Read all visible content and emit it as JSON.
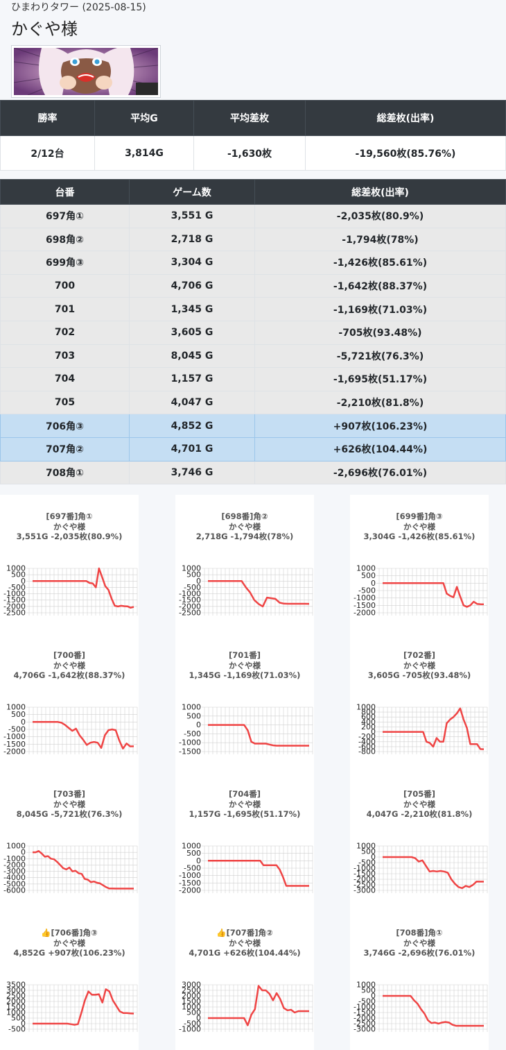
{
  "header": {
    "store": "ひまわりタワー (2025-08-15)",
    "title": "かぐや様"
  },
  "summary": {
    "headers": [
      "勝率",
      "平均G",
      "平均差枚",
      "総差枚(出率)"
    ],
    "values": [
      "2/12台",
      "3,814G",
      "-1,630枚",
      "-19,560枚(85.76%)"
    ]
  },
  "machines": {
    "headers": [
      "台番",
      "ゲーム数",
      "総差枚(出率)"
    ],
    "rows": [
      {
        "no": "697角①",
        "games": "3,551 G",
        "diff": "-2,035枚(80.9%)",
        "highlight": false
      },
      {
        "no": "698角②",
        "games": "2,718 G",
        "diff": "-1,794枚(78%)",
        "highlight": false
      },
      {
        "no": "699角③",
        "games": "3,304 G",
        "diff": "-1,426枚(85.61%)",
        "highlight": false
      },
      {
        "no": "700",
        "games": "4,706 G",
        "diff": "-1,642枚(88.37%)",
        "highlight": false
      },
      {
        "no": "701",
        "games": "1,345 G",
        "diff": "-1,169枚(71.03%)",
        "highlight": false
      },
      {
        "no": "702",
        "games": "3,605 G",
        "diff": "-705枚(93.48%)",
        "highlight": false
      },
      {
        "no": "703",
        "games": "8,045 G",
        "diff": "-5,721枚(76.3%)",
        "highlight": false
      },
      {
        "no": "704",
        "games": "1,157 G",
        "diff": "-1,695枚(51.17%)",
        "highlight": false
      },
      {
        "no": "705",
        "games": "4,047 G",
        "diff": "-2,210枚(81.8%)",
        "highlight": false
      },
      {
        "no": "706角③",
        "games": "4,852 G",
        "diff": "+907枚(106.23%)",
        "highlight": true
      },
      {
        "no": "707角②",
        "games": "4,701 G",
        "diff": "+626枚(104.44%)",
        "highlight": true
      },
      {
        "no": "708角①",
        "games": "3,746 G",
        "diff": "-2,696枚(76.01%)",
        "highlight": false
      }
    ]
  },
  "colors": {
    "line": "#ef4444",
    "grid": "#d0d0d0",
    "header": "#343a40",
    "highlight": "#c5def3"
  },
  "chart_data": [
    {
      "type": "line",
      "title_lines": [
        "[697番]角①",
        "かぐや様",
        "3,551G -2,035枚(80.9%)"
      ],
      "yticks": [
        1000,
        500,
        0,
        -500,
        -1000,
        -1500,
        -2000,
        -2500
      ],
      "ylim": [
        -2500,
        1000
      ],
      "values": [
        0,
        0,
        0,
        0,
        0,
        0,
        0,
        0,
        0,
        0,
        0,
        0,
        0,
        0,
        0,
        0,
        0,
        0,
        -150,
        -180,
        -500,
        1000,
        300,
        -400,
        -700,
        -1400,
        -1950,
        -2000,
        -1950,
        -1980,
        -1990,
        -2100,
        -2035
      ]
    },
    {
      "type": "line",
      "title_lines": [
        "[698番]角②",
        "かぐや様",
        "2,718G -1,794枚(78%)"
      ],
      "yticks": [
        1000,
        500,
        0,
        -500,
        -1000,
        -1500,
        -2000,
        -2500
      ],
      "ylim": [
        -2500,
        1000
      ],
      "values": [
        0,
        0,
        0,
        0,
        0,
        0,
        0,
        0,
        0,
        -500,
        -900,
        -1500,
        -1800,
        -2000,
        -1300,
        -1350,
        -1400,
        -1700,
        -1780,
        -1790,
        -1790,
        -1790,
        -1790,
        -1790,
        -1794
      ]
    },
    {
      "type": "line",
      "title_lines": [
        "[699番]角③",
        "かぐや様",
        "3,304G -1,426枚(85.61%)"
      ],
      "yticks": [
        1000,
        500,
        0,
        -500,
        -1000,
        -1500,
        -2000
      ],
      "ylim": [
        -2000,
        1000
      ],
      "values": [
        0,
        0,
        0,
        0,
        0,
        0,
        0,
        0,
        0,
        0,
        0,
        0,
        0,
        0,
        0,
        0,
        0,
        0,
        0,
        -700,
        -850,
        -950,
        -250,
        -900,
        -1500,
        -1600,
        -1500,
        -1250,
        -1400,
        -1420,
        -1426
      ]
    },
    {
      "type": "line",
      "title_lines": [
        "[700番]",
        "かぐや様",
        "4,706G -1,642枚(88.37%)"
      ],
      "yticks": [
        1000,
        500,
        0,
        -500,
        -1000,
        -1500,
        -2000
      ],
      "ylim": [
        -2000,
        1000
      ],
      "values": [
        0,
        0,
        0,
        0,
        0,
        0,
        0,
        0,
        -50,
        -200,
        -400,
        -600,
        -450,
        -900,
        -1200,
        -1550,
        -1400,
        -1350,
        -1400,
        -1750,
        -900,
        -550,
        -500,
        -550,
        -1250,
        -1800,
        -1450,
        -1650,
        -1642
      ]
    },
    {
      "type": "line",
      "title_lines": [
        "[701番]",
        "かぐや様",
        "1,345G -1,169枚(71.03%)"
      ],
      "yticks": [
        1000,
        500,
        0,
        -500,
        -1000,
        -1500
      ],
      "ylim": [
        -1500,
        1000
      ],
      "values": [
        0,
        0,
        0,
        0,
        0,
        0,
        0,
        0,
        0,
        0,
        0,
        -300,
        -950,
        -1050,
        -1050,
        -1050,
        -1050,
        -1100,
        -1150,
        -1169,
        -1169,
        -1169,
        -1169,
        -1169,
        -1169,
        -1169,
        -1169,
        -1169,
        -1169
      ]
    },
    {
      "type": "line",
      "title_lines": [
        "[702番]",
        "かぐや様",
        "3,605G -705枚(93.48%)"
      ],
      "yticks": [
        1000,
        800,
        600,
        400,
        200,
        0,
        -200,
        -400,
        -600,
        -800
      ],
      "ylim": [
        -800,
        1000
      ],
      "values": [
        0,
        0,
        0,
        0,
        0,
        0,
        0,
        0,
        0,
        0,
        0,
        0,
        0,
        -400,
        -450,
        -600,
        -250,
        -400,
        -400,
        350,
        500,
        600,
        750,
        950,
        500,
        150,
        -500,
        -500,
        -500,
        -700,
        -705
      ]
    },
    {
      "type": "line",
      "title_lines": [
        "[703番]",
        "かぐや様",
        "8,045G -5,721枚(76.3%)"
      ],
      "yticks": [
        1000,
        0,
        -1000,
        -2000,
        -3000,
        -4000,
        -5000,
        -6000
      ],
      "ylim": [
        -6000,
        1000
      ],
      "values": [
        0,
        0,
        200,
        -200,
        -700,
        -600,
        -1000,
        -1100,
        -1500,
        -2000,
        -2500,
        -2700,
        -2400,
        -3000,
        -2900,
        -3300,
        -3400,
        -4200,
        -4300,
        -4700,
        -4600,
        -4800,
        -4900,
        -5200,
        -5500,
        -5700,
        -5700,
        -5721,
        -5721,
        -5721,
        -5721,
        -5721,
        -5721,
        -5721
      ]
    },
    {
      "type": "line",
      "title_lines": [
        "[704番]",
        "かぐや様",
        "1,157G -1,695枚(51.17%)"
      ],
      "yticks": [
        1000,
        500,
        0,
        -500,
        -1000,
        -1500,
        -2000
      ],
      "ylim": [
        -2000,
        1000
      ],
      "values": [
        0,
        0,
        0,
        0,
        0,
        0,
        0,
        0,
        0,
        0,
        0,
        0,
        0,
        0,
        0,
        0,
        0,
        -300,
        -300,
        -300,
        -300,
        -300,
        -600,
        -1100,
        -1695,
        -1695,
        -1695,
        -1695,
        -1695,
        -1695,
        -1695,
        -1695
      ]
    },
    {
      "type": "line",
      "title_lines": [
        "[705番]",
        "かぐや様",
        "4,047G -2,210枚(81.8%)"
      ],
      "yticks": [
        1000,
        500,
        0,
        -500,
        -1000,
        -1500,
        -2000,
        -2500,
        -3000
      ],
      "ylim": [
        -3000,
        1000
      ],
      "values": [
        0,
        0,
        0,
        0,
        0,
        0,
        0,
        0,
        0,
        -100,
        -400,
        -300,
        -800,
        -1300,
        -1250,
        -1300,
        -1250,
        -1300,
        -1400,
        -2000,
        -2400,
        -2700,
        -2800,
        -2600,
        -2700,
        -2500,
        -2200,
        -2210,
        -2210
      ]
    },
    {
      "type": "line",
      "title_lines": [
        "👍[706番]角③",
        "かぐや様",
        "4,852G +907枚(106.23%)"
      ],
      "yticks": [
        3500,
        3000,
        2500,
        2000,
        1500,
        1000,
        500,
        0,
        -500
      ],
      "ylim": [
        -500,
        3500
      ],
      "values": [
        0,
        0,
        0,
        0,
        0,
        0,
        0,
        0,
        0,
        0,
        0,
        -50,
        -100,
        -50,
        1000,
        2100,
        2900,
        2600,
        2600,
        2650,
        1900,
        3100,
        2900,
        2100,
        1600,
        1100,
        950,
        950,
        920,
        907
      ]
    },
    {
      "type": "line",
      "title_lines": [
        "👍[707番]角②",
        "かぐや様",
        "4,701G +626枚(104.44%)"
      ],
      "yticks": [
        3000,
        2500,
        2000,
        1500,
        1000,
        500,
        0,
        -500,
        -1000
      ],
      "ylim": [
        -1000,
        3000
      ],
      "values": [
        0,
        0,
        0,
        0,
        0,
        0,
        0,
        0,
        0,
        0,
        0,
        -650,
        300,
        800,
        2900,
        2500,
        2500,
        2200,
        1600,
        2250,
        1700,
        900,
        700,
        750,
        500,
        626,
        626,
        626,
        626
      ]
    },
    {
      "type": "line",
      "title_lines": [
        "[708番]角①",
        "かぐや様",
        "3,746G -2,696枚(76.01%)"
      ],
      "yticks": [
        1000,
        500,
        0,
        -500,
        -1000,
        -1500,
        -2000,
        -2500,
        -3000
      ],
      "ylim": [
        -3000,
        1000
      ],
      "values": [
        0,
        0,
        0,
        0,
        0,
        0,
        0,
        0,
        0,
        -400,
        -700,
        -1200,
        -1600,
        -2200,
        -2450,
        -2400,
        -2500,
        -2400,
        -2350,
        -2400,
        -2600,
        -2696,
        -2696,
        -2696,
        -2696,
        -2696,
        -2696,
        -2696,
        -2696,
        -2696
      ]
    }
  ]
}
